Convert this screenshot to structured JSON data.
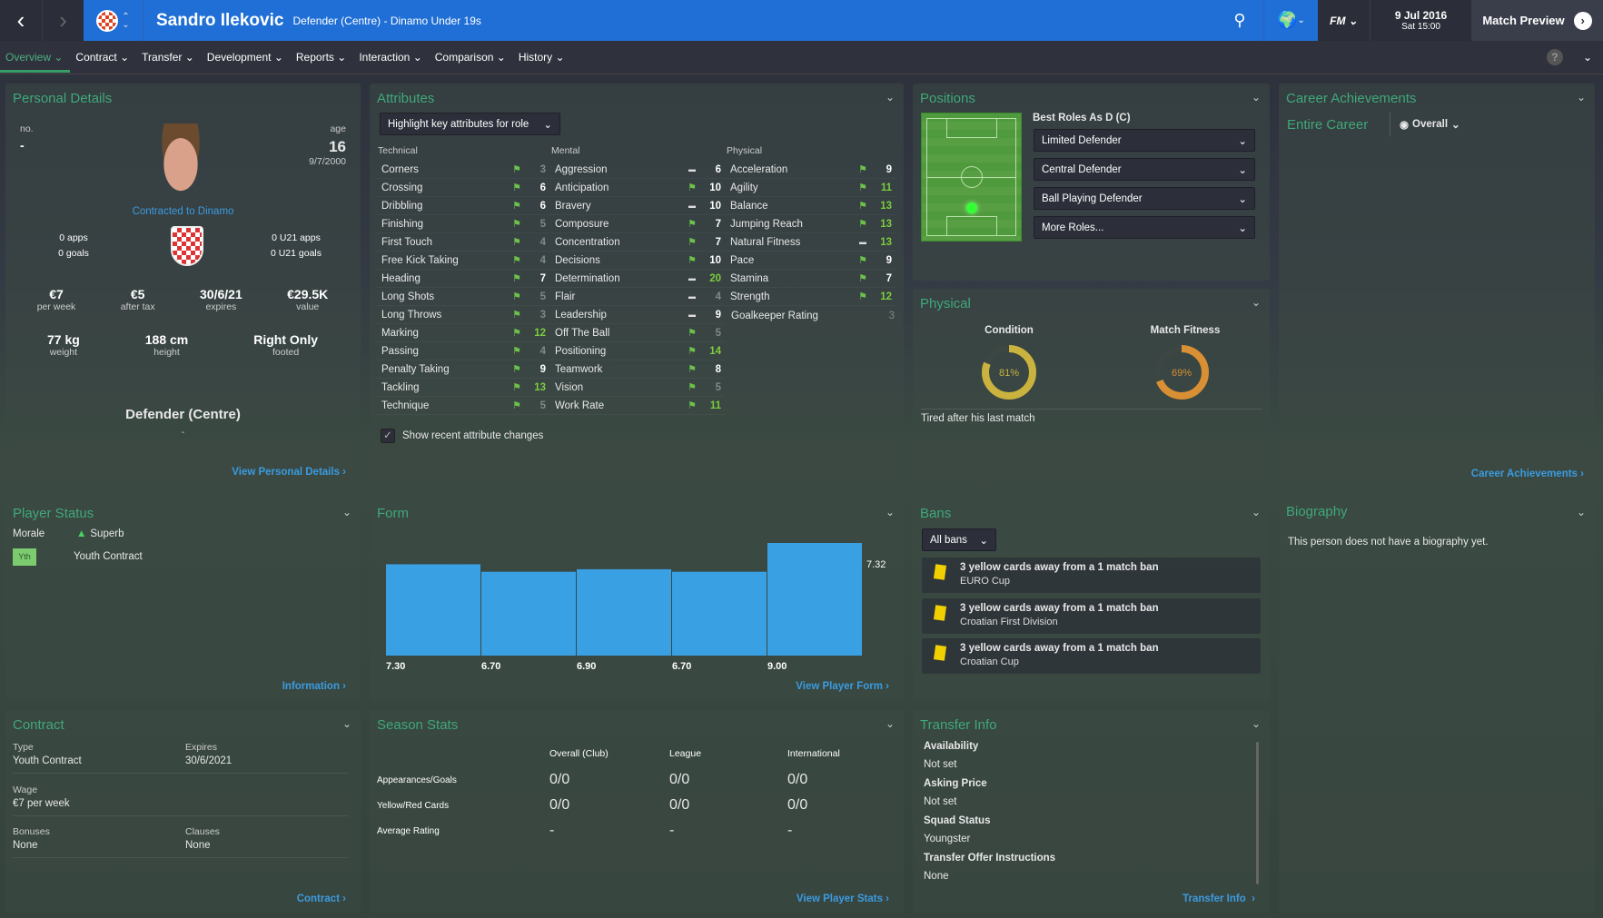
{
  "header": {
    "player_name": "Sandro Ilekovic",
    "subtitle": "Defender (Centre) - Dinamo Under 19s",
    "date": "9 Jul 2016",
    "time": "Sat 15:00",
    "match_preview": "Match Preview",
    "fm_logo": "FM"
  },
  "tabs": [
    {
      "label": "Overview"
    },
    {
      "label": "Contract"
    },
    {
      "label": "Transfer"
    },
    {
      "label": "Development"
    },
    {
      "label": "Reports"
    },
    {
      "label": "Interaction"
    },
    {
      "label": "Comparison"
    },
    {
      "label": "History"
    }
  ],
  "personal": {
    "title": "Personal Details",
    "no_label": "no.",
    "no": "-",
    "age_label": "age",
    "age": "16",
    "dob": "9/7/2000",
    "contracted": "Contracted to Dinamo",
    "apps": "0 apps",
    "goals": "0 goals",
    "u21_apps": "0 U21 apps",
    "u21_goals": "0 U21 goals",
    "stats": [
      {
        "v": "€7",
        "l": "per week"
      },
      {
        "v": "€5",
        "l": "after tax"
      },
      {
        "v": "30/6/21",
        "l": "expires"
      },
      {
        "v": "€29.5K",
        "l": "value"
      }
    ],
    "body": [
      {
        "v": "77 kg",
        "l": "weight"
      },
      {
        "v": "188 cm",
        "l": "height"
      },
      {
        "v": "Right Only",
        "l": "footed"
      }
    ],
    "position": "Defender (Centre)",
    "position_sub": "-",
    "link": "View Personal Details"
  },
  "attributes": {
    "title": "Attributes",
    "highlight": "Highlight key attributes for role",
    "technical_label": "Technical",
    "mental_label": "Mental",
    "physical_label": "Physical",
    "technical": [
      [
        "Corners",
        3
      ],
      [
        "Crossing",
        6
      ],
      [
        "Dribbling",
        6
      ],
      [
        "Finishing",
        5
      ],
      [
        "First Touch",
        4
      ],
      [
        "Free Kick Taking",
        4
      ],
      [
        "Heading",
        7
      ],
      [
        "Long Shots",
        5
      ],
      [
        "Long Throws",
        3
      ],
      [
        "Marking",
        12
      ],
      [
        "Passing",
        4
      ],
      [
        "Penalty Taking",
        9
      ],
      [
        "Tackling",
        13
      ],
      [
        "Technique",
        5
      ]
    ],
    "mental": [
      [
        "Aggression",
        6,
        "dash"
      ],
      [
        "Anticipation",
        10,
        "flag"
      ],
      [
        "Bravery",
        10,
        "dash"
      ],
      [
        "Composure",
        7,
        "flag"
      ],
      [
        "Concentration",
        7,
        "flag"
      ],
      [
        "Decisions",
        10,
        "flag"
      ],
      [
        "Determination",
        20,
        "dash"
      ],
      [
        "Flair",
        4,
        "dash"
      ],
      [
        "Leadership",
        9,
        "dash"
      ],
      [
        "Off The Ball",
        5,
        "flag"
      ],
      [
        "Positioning",
        14,
        "flag"
      ],
      [
        "Teamwork",
        8,
        "flag"
      ],
      [
        "Vision",
        5,
        "flag"
      ],
      [
        "Work Rate",
        11,
        "flag"
      ]
    ],
    "physical": [
      [
        "Acceleration",
        9,
        "flag"
      ],
      [
        "Agility",
        11,
        "flag"
      ],
      [
        "Balance",
        13,
        "flag"
      ],
      [
        "Jumping Reach",
        13,
        "flag"
      ],
      [
        "Natural Fitness",
        13,
        "dash"
      ],
      [
        "Pace",
        9,
        "flag"
      ],
      [
        "Stamina",
        7,
        "flag"
      ],
      [
        "Strength",
        12,
        "flag"
      ]
    ],
    "gk_label": "Goalkeeper Rating",
    "gk_value": "3",
    "show_changes": "Show recent attribute changes"
  },
  "positions": {
    "title": "Positions",
    "best_roles": "Best Roles As D (C)",
    "roles": [
      "Limited Defender",
      "Central Defender",
      "Ball Playing Defender",
      "More Roles..."
    ]
  },
  "physical_panel": {
    "title": "Physical",
    "condition_label": "Condition",
    "condition": 81,
    "condition_text": "81%",
    "fitness_label": "Match Fitness",
    "fitness": 69,
    "fitness_text": "69%",
    "note": "Tired after his last match",
    "colors": {
      "condition": "#c9b33e",
      "fitness": "#d98f33"
    }
  },
  "career": {
    "title": "Career Achievements",
    "scope": "Entire Career",
    "filter": "Overall",
    "link": "Career Achievements"
  },
  "status": {
    "title": "Player Status",
    "morale_label": "Morale",
    "morale": "Superb",
    "badge": "Yth",
    "contract": "Youth Contract",
    "link": "Information"
  },
  "form": {
    "title": "Form",
    "link": "View Player Form"
  },
  "chart_data": {
    "type": "bar",
    "categories": [
      "",
      "",
      "",
      "",
      ""
    ],
    "values": [
      7.3,
      6.7,
      6.9,
      6.7,
      9.0
    ],
    "value_labels": [
      "7.30",
      "6.70",
      "6.90",
      "6.70",
      "9.00"
    ],
    "average": 7.32,
    "average_label": "7.32",
    "ylim": [
      0,
      9.0
    ],
    "color": "#3aa0e4"
  },
  "bans": {
    "title": "Bans",
    "filter": "All bans",
    "items": [
      {
        "text": "3 yellow cards away from a 1 match ban",
        "comp": "EURO Cup"
      },
      {
        "text": "3 yellow cards away from a 1 match ban",
        "comp": "Croatian First Division"
      },
      {
        "text": "3 yellow cards away from a 1 match ban",
        "comp": "Croatian Cup"
      }
    ]
  },
  "biography": {
    "title": "Biography",
    "text": "This person does not have a biography yet."
  },
  "contract": {
    "title": "Contract",
    "type_label": "Type",
    "type": "Youth Contract",
    "expires_label": "Expires",
    "expires": "30/6/2021",
    "wage_label": "Wage",
    "wage": "€7 per week",
    "bonuses_label": "Bonuses",
    "bonuses": "None",
    "clauses_label": "Clauses",
    "clauses": "None",
    "link": "Contract"
  },
  "season": {
    "title": "Season Stats",
    "cols": [
      "Overall (Club)",
      "League",
      "International"
    ],
    "rows": [
      {
        "label": "Appearances/Goals",
        "vals": [
          "0/0",
          "0/0",
          "0/0"
        ]
      },
      {
        "label": "Yellow/Red Cards",
        "vals": [
          "0/0",
          "0/0",
          "0/0"
        ]
      },
      {
        "label": "Average Rating",
        "vals": [
          "-",
          "-",
          "-"
        ]
      }
    ],
    "link": "View Player Stats"
  },
  "transfer": {
    "title": "Transfer Info",
    "items": [
      {
        "label": "Availability",
        "value": "Not set"
      },
      {
        "label": "Asking Price",
        "value": "Not set"
      },
      {
        "label": "Squad Status",
        "value": "Youngster"
      },
      {
        "label": "Transfer Offer Instructions",
        "value": "None"
      }
    ],
    "link": "Transfer Info"
  }
}
